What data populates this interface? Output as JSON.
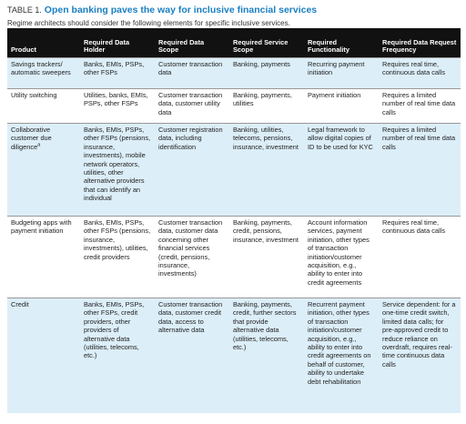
{
  "header": {
    "table_label": "TABLE 1.",
    "title": "Open banking paves the way for inclusive financial services",
    "subtitle": "Regime architects should consider the following elements for specific inclusive services."
  },
  "table": {
    "columns": [
      "Product",
      "Required Data Holder",
      "Required Data Scope",
      "Required Service Scope",
      "Required Functionality",
      "Required Data Request Frequency"
    ],
    "rows": [
      {
        "product": "Savings trackers/ automatic sweepers",
        "cells": [
          "Banks, EMIs, PSPs, other FSPs",
          "Customer transaction data",
          "Banking, payments",
          "Recurring payment initiation",
          "Requires real time, continuous data calls"
        ]
      },
      {
        "product": "Utility switching",
        "cells": [
          "Utilities, banks, EMIs, PSPs, other FSPs",
          "Customer transaction data, customer utility data",
          "Banking, payments, utilities",
          "Payment initiation",
          "Requires a limited number of real time data calls"
        ]
      },
      {
        "product": "Collaborative customer due diligence",
        "note": "a",
        "cells": [
          "Banks, EMIs, PSPs, other FSPs (pensions, insurance, investments), mobile network operators, utilities, other alternative providers that can identify an individual",
          "Customer registration data, including identification",
          "Banking, utilities, telecoms, pensions, insurance, investment",
          "Legal framework to allow digital copies of ID to be used for KYC",
          "Requires a limited number of real time data calls"
        ]
      },
      {
        "product": "Budgeting apps with payment initiation",
        "cells": [
          "Banks, EMIs, PSPs, other FSPs (pensions, insurance, investments), utilities, credit providers",
          "Customer transaction data, customer data concerning other financial services (credit, pensions, insurance, investments)",
          "Banking, payments, credit, pensions, insurance, investment",
          "Account information services, payment initiation, other types of transaction initiation/customer acquisition, e.g., ability to enter into credit agreements",
          "Requires real time, continuous data calls"
        ]
      },
      {
        "product": "Credit",
        "cells": [
          "Banks, EMIs, PSPs, other FSPs, credit providers, other providers of alternative data (utilities, telecoms, etc.)",
          "Customer transaction data, customer credit data, access to alternative data",
          "Banking, payments, credit, further sectors that provide alternative data (utilities, telecoms, etc.)",
          "Recurrent payment initiation, other types of transaction initiation/customer acquisition, e.g., ability to enter into credit agreements on behalf of customer, ability to undertake debt rehabilitation",
          "Service dependent: for a one-time credit switch, limited data calls; for pre-approved credit to reduce reliance on overdraft, requires real-time continuous data calls"
        ]
      }
    ]
  }
}
